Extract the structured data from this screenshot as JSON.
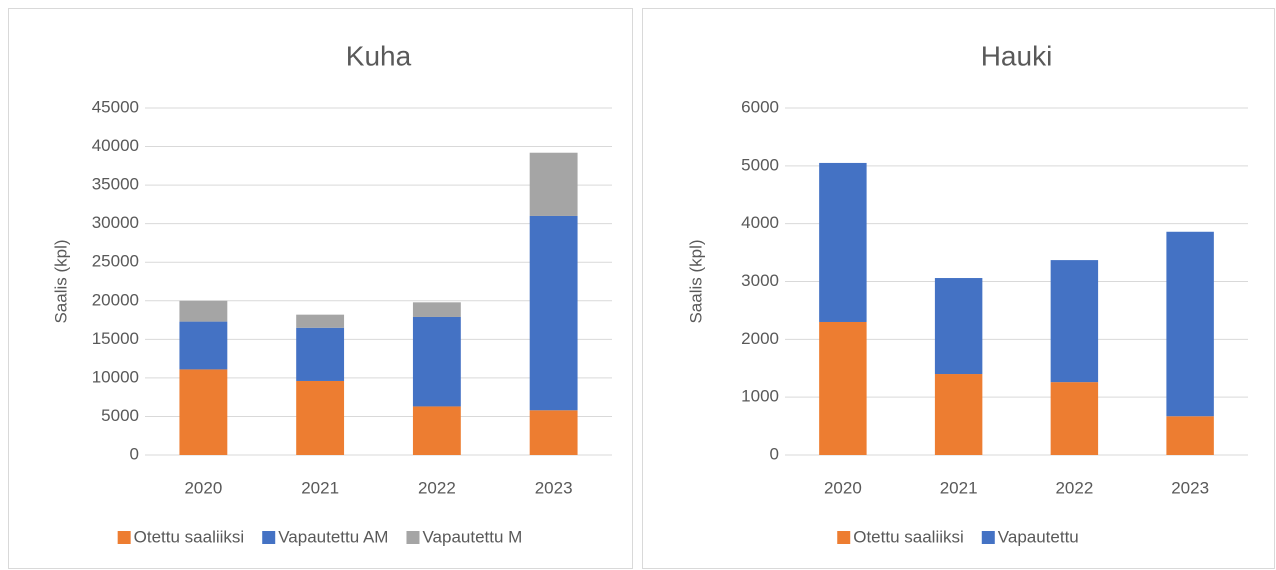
{
  "chart_data": [
    {
      "type": "bar",
      "stacked": true,
      "title": "Kuha",
      "y_label": "Saalis (kpl)",
      "categories": [
        "2020",
        "2021",
        "2022",
        "2023"
      ],
      "series": [
        {
          "name": "Otettu saaliiksi",
          "color": "#ed7d31",
          "values": [
            11100,
            9600,
            6300,
            5800
          ]
        },
        {
          "name": "Vapautettu AM",
          "color": "#4472c4",
          "values": [
            6200,
            6900,
            11600,
            25200
          ]
        },
        {
          "name": "Vapautettu M",
          "color": "#a5a5a5",
          "values": [
            2700,
            1700,
            1900,
            8200
          ]
        }
      ],
      "ylim": [
        0,
        45000
      ],
      "yticks": [
        0,
        5000,
        10000,
        15000,
        20000,
        25000,
        30000,
        35000,
        40000,
        45000
      ],
      "grid": true,
      "legend": "bottom"
    },
    {
      "type": "bar",
      "stacked": true,
      "title": "Hauki",
      "y_label": "Saalis (kpl)",
      "categories": [
        "2020",
        "2021",
        "2022",
        "2023"
      ],
      "series": [
        {
          "name": "Otettu saaliiksi",
          "color": "#ed7d31",
          "values": [
            2300,
            1400,
            1260,
            670
          ]
        },
        {
          "name": "Vapautettu",
          "color": "#4472c4",
          "values": [
            2750,
            1660,
            2110,
            3190
          ]
        }
      ],
      "ylim": [
        0,
        6000
      ],
      "yticks": [
        0,
        1000,
        2000,
        3000,
        4000,
        5000,
        6000
      ],
      "grid": true,
      "legend": "bottom"
    }
  ]
}
